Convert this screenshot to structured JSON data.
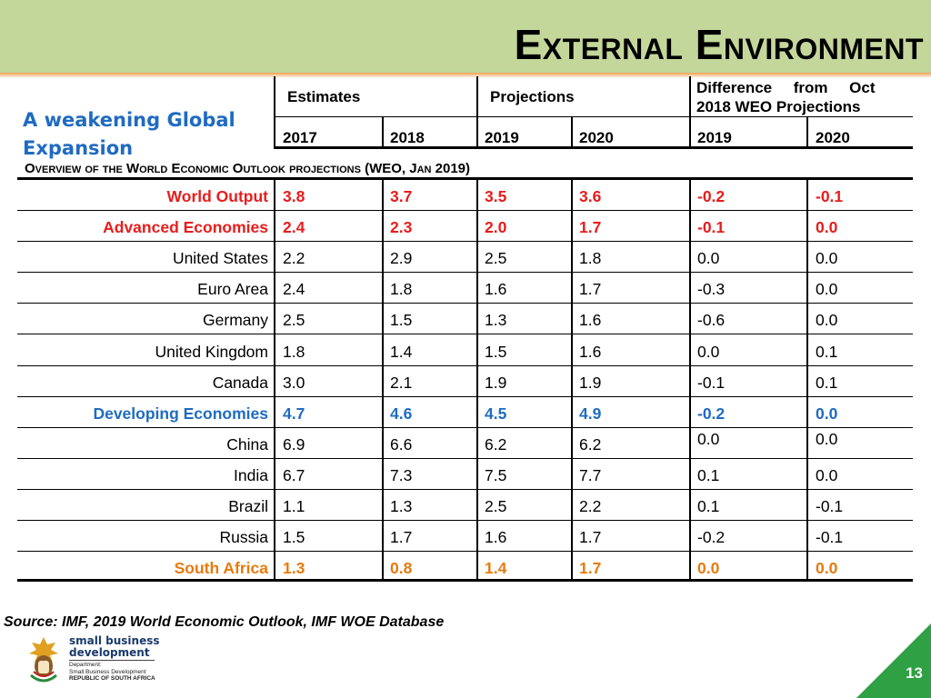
{
  "slide": {
    "title": "External Environment",
    "subtitle": "A weakening Global Expansion",
    "overview": "Overview of the World Economic Outlook projections (WEO, Jan 2019)",
    "source": "Source: IMF, 2019 World Economic Outlook, IMF WOE Database",
    "page_number": "13"
  },
  "table": {
    "group_headers": {
      "estimates": "Estimates",
      "projections": "Projections",
      "difference_line1": "Difference     from     Oct",
      "difference_line2": "2018 WEO Projections"
    },
    "years": [
      "2017",
      "2018",
      "2019",
      "2020",
      "2019",
      "2020"
    ],
    "rows": [
      {
        "country": "World Output",
        "values": [
          "3.8",
          "3.7",
          "3.5",
          "3.6",
          "-0.2",
          "-0.1"
        ]
      },
      {
        "country": "Advanced Economies",
        "values": [
          "2.4",
          "2.3",
          "2.0",
          "1.7",
          "-0.1",
          "0.0"
        ]
      },
      {
        "country": "United States",
        "values": [
          "2.2",
          "2.9",
          "2.5",
          "1.8",
          "0.0",
          "0.0"
        ]
      },
      {
        "country": "Euro Area",
        "values": [
          "2.4",
          "1.8",
          "1.6",
          "1.7",
          "-0.3",
          "0.0"
        ]
      },
      {
        "country": "Germany",
        "values": [
          "2.5",
          "1.5",
          "1.3",
          "1.6",
          "-0.6",
          "0.0"
        ]
      },
      {
        "country": "United Kingdom",
        "values": [
          "1.8",
          "1.4",
          "1.5",
          "1.6",
          "0.0",
          "0.1"
        ]
      },
      {
        "country": "Canada",
        "values": [
          "3.0",
          "2.1",
          "1.9",
          "1.9",
          "-0.1",
          "0.1"
        ]
      },
      {
        "country": "Developing Economies",
        "values": [
          "4.7",
          "4.6",
          "4.5",
          "4.9",
          "-0.2",
          "0.0"
        ]
      },
      {
        "country": "China",
        "values": [
          "6.9",
          "6.6",
          "6.2",
          "6.2",
          "0.0",
          "0.0"
        ]
      },
      {
        "country": "India",
        "values": [
          "6.7",
          "7.3",
          "7.5",
          "7.7",
          "0.1",
          "0.0"
        ]
      },
      {
        "country": "Brazil",
        "values": [
          "1.1",
          "1.3",
          "2.5",
          "2.2",
          "0.1",
          "-0.1"
        ]
      },
      {
        "country": "Russia",
        "values": [
          "1.5",
          "1.7",
          "1.6",
          "1.7",
          "-0.2",
          "-0.1"
        ]
      },
      {
        "country": "South Africa",
        "values": [
          "1.3",
          "0.8",
          "1.4",
          "1.7",
          "0.0",
          "0.0"
        ]
      }
    ]
  },
  "logo": {
    "line1": "small business",
    "line2": "development",
    "dept1": "Department:",
    "dept2": "Small Business Development",
    "dept3": "REPUBLIC OF SOUTH AFRICA"
  },
  "colors": {
    "header_band": "#c4d79b",
    "world_advanced": "#e81c1c",
    "developing": "#1f6bc1",
    "south_africa": "#e87a0c",
    "corner": "#2fa043"
  }
}
